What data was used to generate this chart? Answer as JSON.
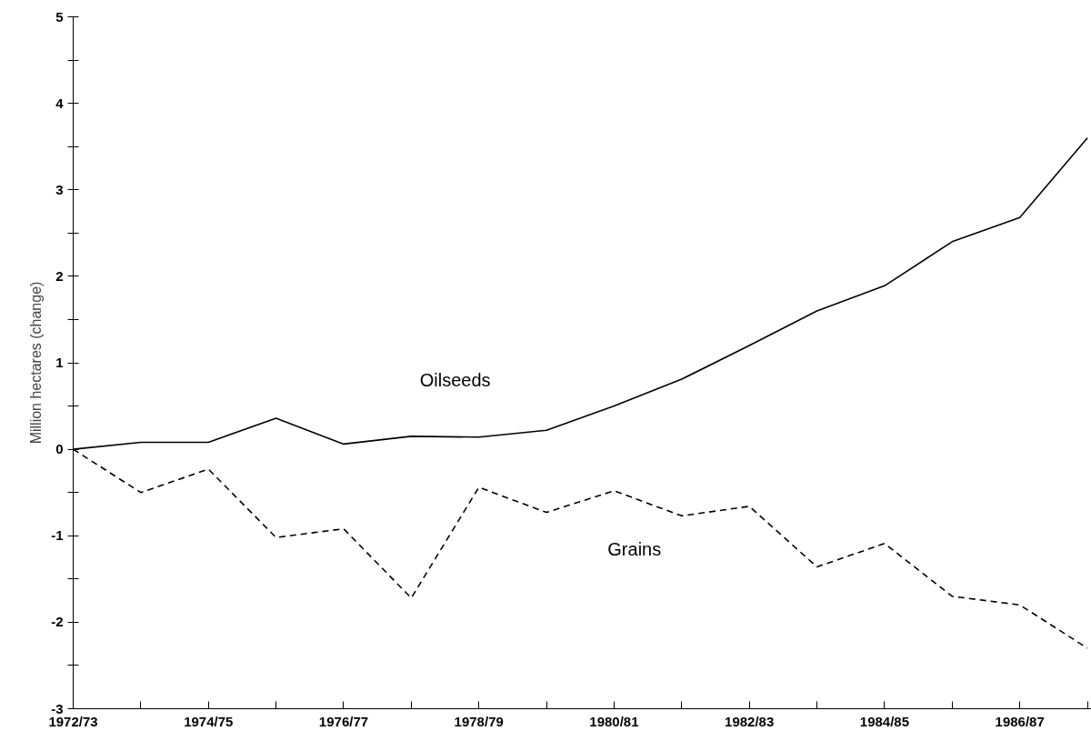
{
  "chart_data": {
    "type": "line",
    "ylabel": "Million hectares (change)",
    "categories": [
      "1972/73",
      null,
      "1974/75",
      null,
      "1976/77",
      null,
      "1978/79",
      null,
      "1980/81",
      null,
      "1982/83",
      null,
      "1984/85",
      null,
      "1986/87",
      null
    ],
    "series": [
      {
        "name": "Oilseeds",
        "color": "#000000",
        "line_style": "solid",
        "values": [
          0,
          0.08,
          0.08,
          0.36,
          0.06,
          0.15,
          0.14,
          0.22,
          0.5,
          0.81,
          1.2,
          1.6,
          1.89,
          2.4,
          2.68,
          3.6
        ]
      },
      {
        "name": "Grains",
        "color": "#000000",
        "line_style": "dashed",
        "values": [
          0,
          -0.5,
          -0.23,
          -1.02,
          -0.92,
          -1.72,
          -0.44,
          -0.73,
          -0.48,
          -0.77,
          -0.66,
          -1.36,
          -1.09,
          -1.7,
          -1.8,
          -2.3
        ]
      }
    ],
    "ylim": [
      -3,
      5
    ],
    "yticks": [
      -3,
      {
        "value": -2.5,
        "label": null
      },
      -2,
      {
        "value": -1.5,
        "label": null
      },
      -1,
      {
        "value": -0.5,
        "label": null
      },
      0,
      {
        "value": 0.5,
        "label": null
      },
      1,
      {
        "value": 1.5,
        "label": null
      },
      2,
      {
        "value": 2.5,
        "label": null
      },
      3,
      {
        "value": 3.5,
        "label": null
      },
      4,
      {
        "value": 4.5,
        "label": null
      },
      5
    ],
    "grid": false,
    "legend": false,
    "marker": "none"
  }
}
